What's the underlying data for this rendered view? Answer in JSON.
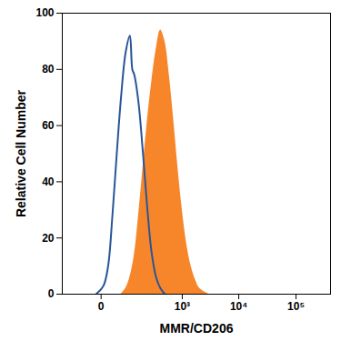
{
  "chart_data": {
    "type": "line",
    "xlabel": "MMR/CD206",
    "ylabel": "Relative Cell Number",
    "xlim": [
      -150,
      400000
    ],
    "xticks": [
      0,
      {
        "value": 1000,
        "label": "10³"
      },
      {
        "value": 10000,
        "label": "10⁴"
      },
      {
        "value": 100000,
        "label": "10⁵"
      }
    ],
    "ylim": [
      0,
      100
    ],
    "yticks": [
      0,
      20,
      40,
      60,
      80,
      100
    ],
    "log": "x",
    "grid": false,
    "series": [
      {
        "type": "area",
        "color": "#f7862a",
        "x": [
          49,
          67,
          87,
          112,
          140,
          175,
          217,
          263,
          324,
          395,
          478,
          578,
          697,
          835,
          1000,
          1200,
          1440,
          1730,
          2060,
          2970
        ],
        "values": [
          0,
          2,
          6,
          14,
          28,
          45,
          62,
          75,
          87,
          94,
          90,
          78,
          62,
          45,
          30,
          18,
          10,
          5,
          2,
          0
        ]
      },
      {
        "type": "line",
        "color": "#2a5599",
        "x": [
          -9,
          4,
          13,
          23,
          35,
          49,
          67,
          87,
          100,
          112,
          140,
          175,
          217,
          263,
          324,
          395,
          478
        ],
        "values": [
          0,
          3,
          10,
          28,
          50,
          70,
          86,
          92,
          80,
          78,
          68,
          50,
          30,
          15,
          6,
          2,
          0
        ]
      }
    ]
  }
}
